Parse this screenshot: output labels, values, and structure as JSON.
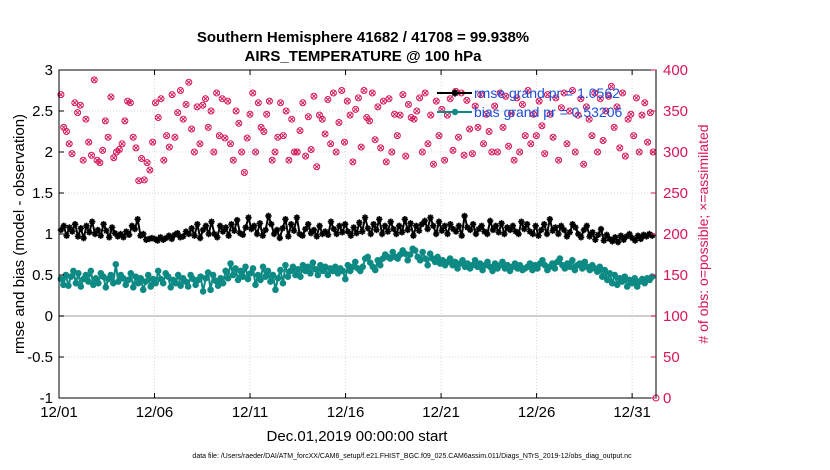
{
  "chart_data": {
    "type": "line",
    "title_line1": "Southern Hemisphere 41682 / 41708 = 99.938%",
    "title_line2": "AIRS_TEMPERATURE @ 100 hPa",
    "xlabel": "Dec.01,2019 00:00:00 start",
    "ylabel": "rmse and bias (model - observation)",
    "ylabel_right": "# of obs: o=possible; ×=assimilated",
    "x_ticks": [
      "12/01",
      "12/06",
      "12/11",
      "12/16",
      "12/21",
      "12/26",
      "12/31"
    ],
    "y_ticks": [
      "-1",
      "-0.5",
      "0",
      "0.5",
      "1",
      "1.5",
      "2",
      "2.5",
      "3"
    ],
    "y_right_ticks": [
      "0",
      "50",
      "100",
      "150",
      "200",
      "250",
      "300",
      "350",
      "400"
    ],
    "xlim": [
      0,
      31.25
    ],
    "ylim": [
      -1,
      3
    ],
    "ylim_right": [
      0,
      400
    ],
    "grid": true,
    "legend_position": "top-right",
    "colors": {
      "rmse": "#000000",
      "bias": "#0e8a84",
      "obs": "#d6165a",
      "zero_line": "#bfbfbf",
      "legend_text": "#1c4fd8"
    },
    "series": [
      {
        "name": "rmse grand pr = 1.0562",
        "axis": "left",
        "values": [
          1.05,
          1.1,
          0.98,
          1.08,
          1.03,
          1.12,
          0.97,
          1.07,
          0.95,
          1.1,
          1.02,
          1.15,
          1.0,
          1.05,
          0.98,
          1.12,
          1.04,
          0.96,
          1.08,
          1.01,
          0.97,
          1.0,
          0.96,
          1.03,
          0.99,
          1.1,
          1.06,
          1.18,
          0.98,
          1.0,
          0.93,
          0.94,
          0.95,
          0.94,
          0.92,
          0.96,
          0.93,
          0.95,
          0.98,
          0.94,
          0.99,
          1.01,
          0.96,
          0.97,
          1.03,
          1.0,
          1.07,
          0.98,
          1.12,
          0.95,
          1.05,
          1.1,
          1.0,
          1.15,
          1.0,
          0.96,
          1.1,
          1.03,
          1.08,
          0.98,
          1.12,
          1.04,
          1.17,
          1.01,
          0.99,
          1.08,
          1.2,
          1.06,
          1.1,
          1.0,
          1.13,
          0.98,
          1.05,
          1.22,
          1.12,
          1.0,
          1.05,
          0.95,
          1.07,
          1.18,
          0.97,
          1.12,
          1.04,
          1.2,
          1.0,
          0.98,
          1.06,
          1.12,
          1.01,
          1.05,
          0.97,
          1.1,
          1.0,
          1.03,
          0.99,
          1.15,
          1.06,
          1.0,
          1.1,
          1.02,
          1.12,
          1.03,
          0.98,
          1.08,
          1.01,
          1.14,
          1.03,
          1.2,
          1.07,
          1.0,
          1.12,
          1.05,
          1.18,
          1.0,
          1.1,
          1.03,
          1.15,
          1.06,
          1.0,
          1.1,
          1.02,
          1.18,
          1.05,
          1.13,
          0.98,
          1.1,
          1.04,
          1.12,
          1.16,
          1.06,
          1.2,
          1.1,
          1.0,
          1.15,
          1.04,
          1.1,
          1.0,
          1.12,
          1.06,
          1.03,
          1.1,
          0.98,
          1.22,
          1.08,
          1.05,
          1.12,
          1.0,
          1.06,
          1.1,
          1.03,
          1.0,
          1.16,
          1.05,
          1.1,
          1.02,
          1.13,
          1.0,
          1.08,
          1.05,
          1.1,
          1.03,
          1.0,
          1.15,
          1.06,
          1.12,
          1.03,
          1.0,
          1.1,
          0.98,
          1.05,
          1.12,
          1.0,
          1.18,
          1.04,
          1.08,
          1.0,
          1.1,
          1.05,
          0.97,
          1.02,
          1.12,
          1.08,
          1.0,
          0.96,
          1.05,
          1.1,
          0.97,
          1.02,
          0.93,
          0.99,
          1.06,
          0.92,
          0.99,
          0.94,
          0.91,
          0.96,
          0.9,
          0.98,
          0.93,
          0.97,
          1.0,
          0.95,
          0.92,
          0.98,
          0.94,
          0.99,
          0.97,
          1.0,
          0.98
        ]
      },
      {
        "name": "bias grand pr = 0.53206",
        "axis": "left",
        "values": [
          0.45,
          0.38,
          0.5,
          0.37,
          0.48,
          0.55,
          0.4,
          0.52,
          0.36,
          0.45,
          0.5,
          0.42,
          0.55,
          0.38,
          0.46,
          0.4,
          0.52,
          0.48,
          0.35,
          0.45,
          0.5,
          0.4,
          0.63,
          0.42,
          0.5,
          0.46,
          0.38,
          0.44,
          0.52,
          0.35,
          0.48,
          0.4,
          0.46,
          0.32,
          0.42,
          0.5,
          0.36,
          0.45,
          0.4,
          0.55,
          0.45,
          0.4,
          0.52,
          0.48,
          0.35,
          0.44,
          0.4,
          0.5,
          0.37,
          0.46,
          0.42,
          0.36,
          0.5,
          0.45,
          0.38,
          0.44,
          0.48,
          0.3,
          0.46,
          0.53,
          0.32,
          0.5,
          0.43,
          0.37,
          0.46,
          0.4,
          0.55,
          0.46,
          0.64,
          0.5,
          0.58,
          0.44,
          0.55,
          0.48,
          0.6,
          0.45,
          0.52,
          0.58,
          0.38,
          0.5,
          0.44,
          0.6,
          0.48,
          0.55,
          0.42,
          0.5,
          0.32,
          0.46,
          0.56,
          0.4,
          0.62,
          0.48,
          0.55,
          0.6,
          0.5,
          0.57,
          0.48,
          0.62,
          0.55,
          0.6,
          0.52,
          0.65,
          0.57,
          0.5,
          0.62,
          0.55,
          0.6,
          0.5,
          0.58,
          0.55,
          0.6,
          0.52,
          0.58,
          0.55,
          0.45,
          0.62,
          0.55,
          0.6,
          0.66,
          0.58,
          0.55,
          0.6,
          0.7,
          0.72,
          0.65,
          0.6,
          0.56,
          0.68,
          0.62,
          0.7,
          0.75,
          0.72,
          0.7,
          0.78,
          0.72,
          0.7,
          0.75,
          0.8,
          0.76,
          0.68,
          0.75,
          0.82,
          0.8,
          0.72,
          0.68,
          0.78,
          0.7,
          0.62,
          0.76,
          0.7,
          0.66,
          0.72,
          0.64,
          0.68,
          0.62,
          0.66,
          0.7,
          0.62,
          0.66,
          0.58,
          0.64,
          0.68,
          0.6,
          0.64,
          0.58,
          0.62,
          0.68,
          0.6,
          0.64,
          0.56,
          0.62,
          0.66,
          0.6,
          0.55,
          0.64,
          0.58,
          0.62,
          0.66,
          0.58,
          0.62,
          0.55,
          0.6,
          0.64,
          0.58,
          0.62,
          0.56,
          0.58,
          0.6,
          0.64,
          0.56,
          0.62,
          0.58,
          0.64,
          0.68,
          0.62,
          0.56,
          0.6,
          0.64,
          0.58,
          0.66,
          0.7,
          0.62,
          0.58,
          0.64,
          0.6,
          0.68,
          0.56,
          0.62,
          0.64,
          0.58,
          0.66,
          0.6,
          0.56,
          0.62,
          0.58,
          0.54,
          0.6,
          0.48,
          0.56,
          0.44,
          0.52,
          0.4,
          0.5,
          0.38,
          0.46,
          0.42,
          0.48,
          0.36,
          0.44,
          0.4,
          0.46,
          0.36,
          0.42,
          0.45,
          0.4,
          0.46,
          0.44,
          0.48
        ]
      },
      {
        "name": "# of obs possible / assimilated",
        "axis": "right",
        "values": [
          370,
          330,
          325,
          310,
          298,
          360,
          348,
          357,
          290,
          340,
          312,
          296,
          388,
          290,
          287,
          302,
          338,
          318,
          367,
          293,
          300,
          303,
          310,
          338,
          362,
          360,
          318,
          305,
          265,
          292,
          266,
          287,
          278,
          312,
          360,
          342,
          365,
          290,
          320,
          306,
          370,
          318,
          348,
          375,
          340,
          358,
          385,
          328,
          300,
          355,
          310,
          357,
          365,
          330,
          350,
          300,
          372,
          320,
          365,
          317,
          362,
          310,
          290,
          350,
          335,
          300,
          275,
          317,
          346,
          372,
          300,
          360,
          330,
          325,
          346,
          362,
          290,
          300,
          318,
          360,
          320,
          350,
          290,
          340,
          300,
          300,
          326,
          360,
          295,
          343,
          303,
          368,
          282,
          345,
          340,
          322,
          364,
          310,
          372,
          300,
          336,
          375,
          312,
          362,
          345,
          288,
          352,
          366,
          306,
          375,
          342,
          338,
          372,
          315,
          355,
          305,
          362,
          288,
          365,
          300,
          346,
          320,
          345,
          370,
          295,
          358,
          342,
          340,
          350,
          366,
          300,
          372,
          310,
          345,
          285,
          362,
          320,
          352,
          290,
          345,
          365,
          302,
          374,
          318,
          372,
          296,
          363,
          328,
          298,
          356,
          330,
          370,
          310,
          346,
          325,
          300,
          356,
          300,
          372,
          330,
          368,
          307,
          347,
          290,
          366,
          300,
          358,
          320,
          375,
          310,
          346,
          320,
          362,
          332,
          298,
          370,
          346,
          318,
          366,
          290,
          354,
          372,
          310,
          350,
          375,
          300,
          345,
          365,
          285,
          355,
          340,
          320,
          372,
          300,
          365,
          314,
          350,
          368,
          380,
          330,
          355,
          305,
          372,
          295,
          340,
          346,
          320,
          366,
          300,
          345,
          360,
          312,
          348,
          300
        ]
      }
    ],
    "legend": [
      {
        "label": "rmse grand pr = 1.0562"
      },
      {
        "label": "bias grand pr = 0.53206"
      }
    ]
  },
  "footer": {
    "data_file": "data file: /Users/raeder/DAI/ATM_forcXX/CAM6_setup/f.e21.FHIST_BGC.f09_025.CAM6assim.011/Diags_NTrS_2019-12/obs_diag_output.nc"
  }
}
